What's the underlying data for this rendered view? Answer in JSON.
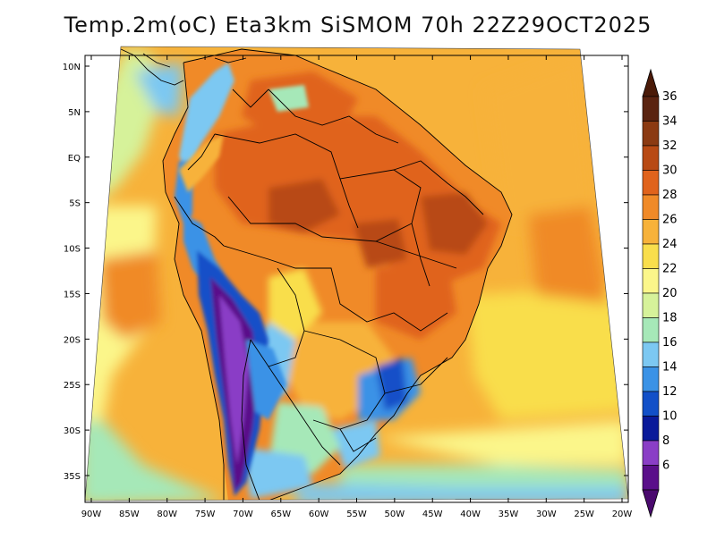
{
  "title": "Temp.2m(oC) Eta3km SiSMOM 70h 22Z29OCT2025",
  "axes": {
    "lon_ticks": [
      "90W",
      "85W",
      "80W",
      "75W",
      "70W",
      "65W",
      "60W",
      "55W",
      "50W",
      "45W",
      "40W",
      "35W",
      "30W",
      "25W",
      "20W"
    ],
    "lat_ticks": [
      "10N",
      "5N",
      "EQ",
      "5S",
      "10S",
      "15S",
      "20S",
      "25S",
      "30S",
      "35S"
    ]
  },
  "colorbar": {
    "labels": [
      "36",
      "34",
      "32",
      "30",
      "28",
      "26",
      "24",
      "22",
      "20",
      "18",
      "16",
      "14",
      "12",
      "10",
      "8",
      "6"
    ],
    "colors": [
      "#5a2310",
      "#8b3a12",
      "#b84a14",
      "#e0631c",
      "#f08a28",
      "#f7b23a",
      "#f9de4c",
      "#fbf68a",
      "#d6f29a",
      "#a6e8b8",
      "#7cc8f2",
      "#3a92e6",
      "#1250c8",
      "#0a1a9a",
      "#8a3ec6",
      "#5a0f8a"
    ],
    "top_arrow_color": "#4a1a08",
    "bottom_arrow_color": "#4a0a6e"
  },
  "map": {
    "ocean_color": "#f7b23a",
    "land_base_color": "#f08a28"
  }
}
